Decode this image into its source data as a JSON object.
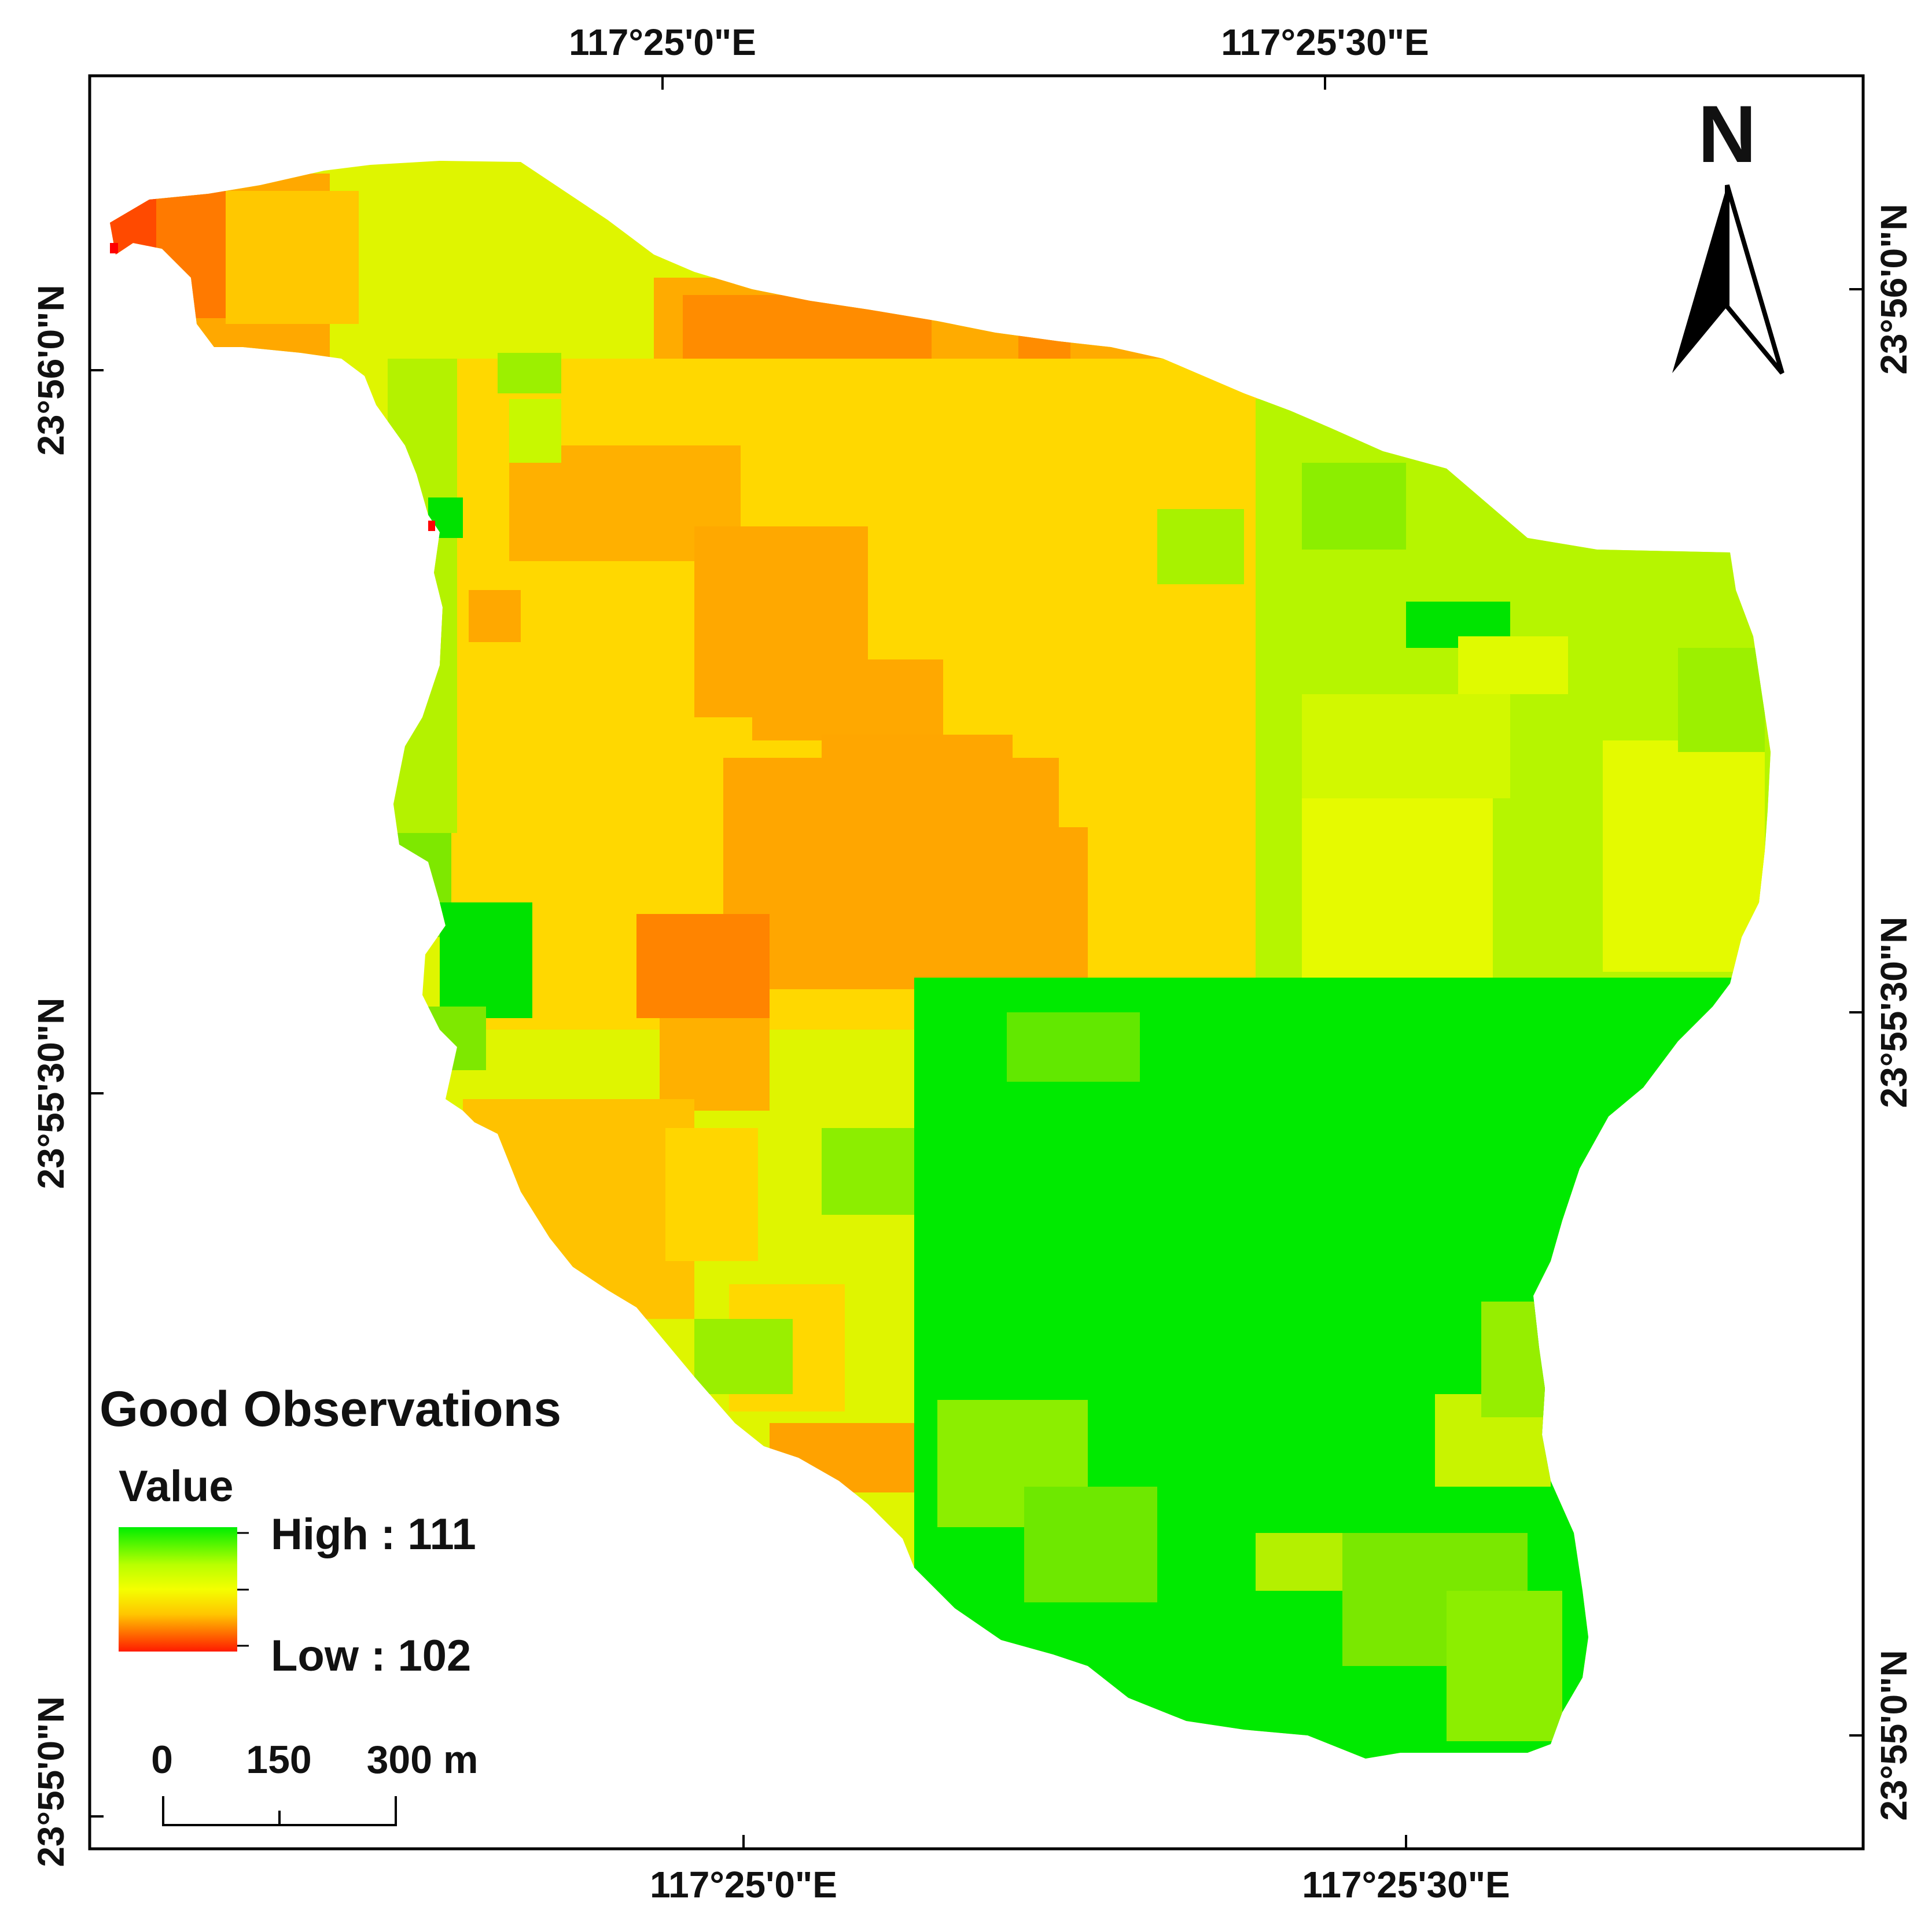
{
  "map": {
    "graticule": {
      "top": [
        "117°25'0\"E",
        "117°25'30\"E"
      ],
      "bottom": [
        "117°25'0\"E",
        "117°25'30\"E"
      ],
      "left": [
        "23°56'0\"N",
        "23°55'30\"N",
        "23°55'0\"N"
      ],
      "right": [
        "23°56'0\"N",
        "23°55'30\"N",
        "23°55'0\"N"
      ]
    },
    "north_arrow": {
      "label": "N"
    },
    "legend": {
      "title": "Good Observations",
      "subtitle": "Value",
      "high_label": "High : 111",
      "low_label": "Low : 102",
      "high_value": 111,
      "low_value": 102,
      "ramp_colors": [
        "#00ee00",
        "#dfff00",
        "#ffd600",
        "#ff9a00",
        "#ff1a00"
      ]
    },
    "scale_bar": {
      "ticks": [
        "0",
        "150",
        "300 m"
      ]
    }
  }
}
